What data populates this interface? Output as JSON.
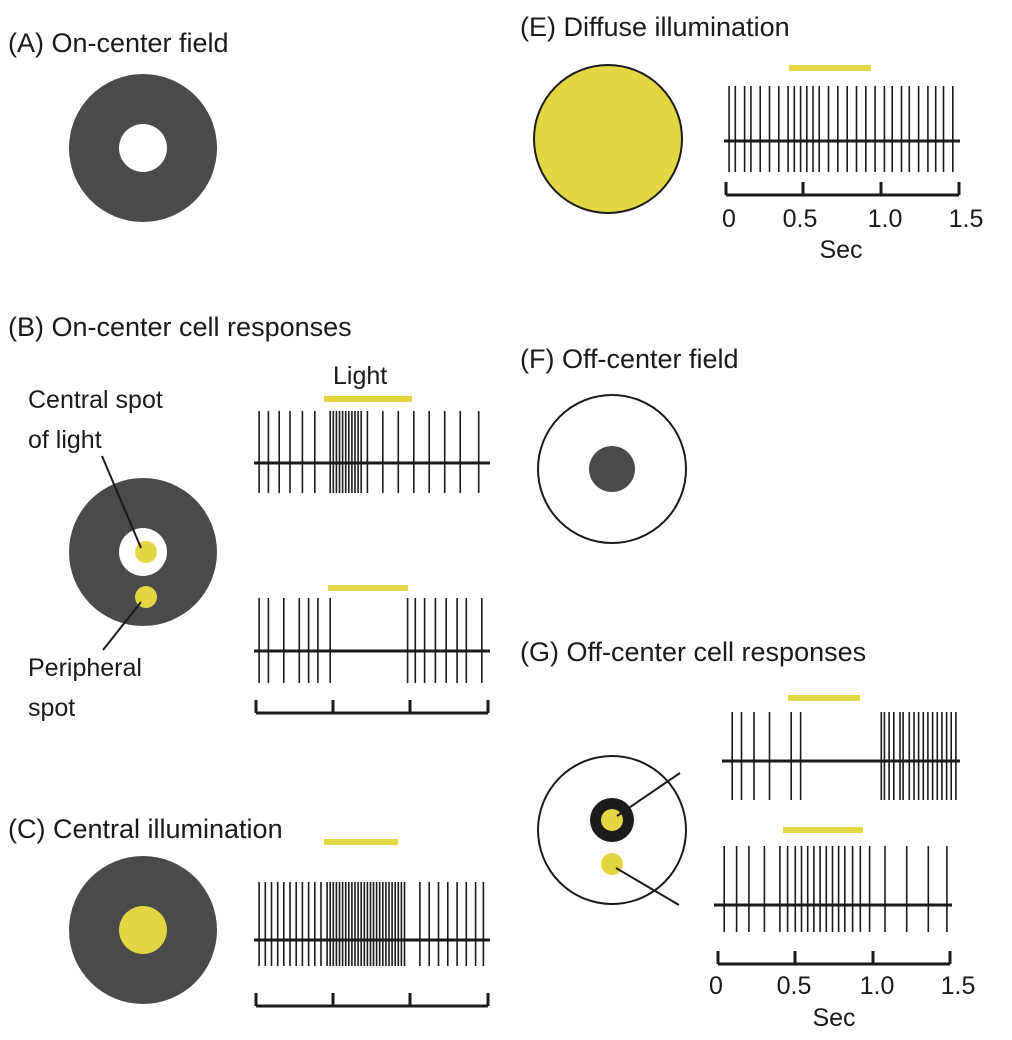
{
  "colors": {
    "dark": "#4a4a4a",
    "light": "#e3d643",
    "ink": "#1a1a1a",
    "white": "#ffffff"
  },
  "panels": {
    "A": {
      "title": "(A)  On-center field"
    },
    "B": {
      "title": "(B)  On-center cell responses",
      "light_label": "Light",
      "central_label_1": "Central spot",
      "central_label_2": "of light",
      "peripheral_label_1": "Peripheral",
      "peripheral_label_2": "spot"
    },
    "C": {
      "title": "(C)  Central illumination"
    },
    "E": {
      "title": "(E)  Diffuse illumination",
      "ticks": [
        "0",
        "0.5",
        "1.0",
        "1.5"
      ],
      "axis_label": "Sec"
    },
    "F": {
      "title": "(F)  Off-center field"
    },
    "G": {
      "title": "(G)  Off-center cell responses",
      "ticks": [
        "0",
        "0.5",
        "1.0",
        "1.5"
      ],
      "axis_label": "Sec"
    }
  },
  "spike_trains": {
    "time_range_sec": [
      0,
      1.5
    ],
    "light_on_sec": [
      0.5,
      1.0
    ],
    "B_central": [
      0.02,
      0.08,
      0.15,
      0.22,
      0.3,
      0.38,
      0.48,
      0.5,
      0.52,
      0.54,
      0.56,
      0.58,
      0.6,
      0.62,
      0.64,
      0.66,
      0.68,
      0.72,
      0.82,
      0.92,
      1.02,
      1.12,
      1.22,
      1.32,
      1.44
    ],
    "B_peripheral": [
      0.02,
      0.08,
      0.18,
      0.28,
      0.34,
      0.4,
      0.48,
      0.98,
      1.03,
      1.09,
      1.16,
      1.23,
      1.3,
      1.36,
      1.46
    ],
    "C_central": [
      0.02,
      0.06,
      0.1,
      0.14,
      0.18,
      0.22,
      0.26,
      0.3,
      0.34,
      0.38,
      0.42,
      0.46,
      0.48,
      0.5,
      0.52,
      0.54,
      0.56,
      0.58,
      0.6,
      0.62,
      0.64,
      0.66,
      0.68,
      0.7,
      0.72,
      0.74,
      0.76,
      0.78,
      0.8,
      0.82,
      0.84,
      0.86,
      0.88,
      0.9,
      0.92,
      0.94,
      0.96,
      1.06,
      1.12,
      1.18,
      1.24,
      1.3,
      1.36,
      1.42,
      1.47
    ],
    "E_diffuse": [
      0.02,
      0.06,
      0.12,
      0.16,
      0.22,
      0.28,
      0.34,
      0.4,
      0.44,
      0.48,
      0.52,
      0.56,
      0.6,
      0.66,
      0.72,
      0.78,
      0.84,
      0.9,
      0.96,
      1.02,
      1.07,
      1.13,
      1.18,
      1.24,
      1.3,
      1.35,
      1.4,
      1.46
    ],
    "G_central": [
      0.04,
      0.1,
      0.18,
      0.28,
      0.42,
      0.48,
      1.0,
      1.02,
      1.05,
      1.08,
      1.12,
      1.14,
      1.18,
      1.21,
      1.24,
      1.27,
      1.3,
      1.33,
      1.36,
      1.39,
      1.42,
      1.45,
      1.48
    ],
    "G_peripheral": [
      0.04,
      0.12,
      0.2,
      0.3,
      0.4,
      0.45,
      0.5,
      0.54,
      0.58,
      0.62,
      0.66,
      0.7,
      0.74,
      0.78,
      0.82,
      0.87,
      0.92,
      0.98,
      1.08,
      1.22,
      1.36,
      1.48
    ]
  }
}
